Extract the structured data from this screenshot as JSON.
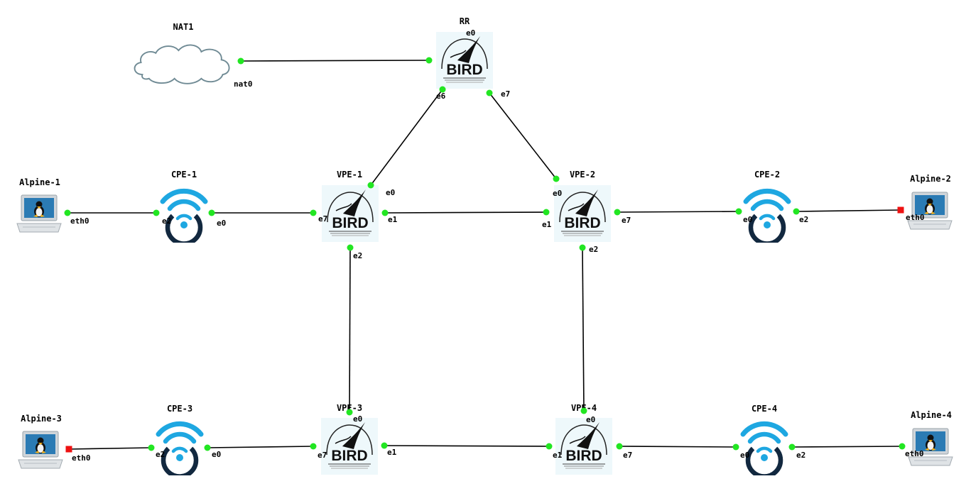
{
  "colors": {
    "port_up": "#22e622",
    "port_down": "#ee1111",
    "wifi_arc": "#1ea7e1",
    "wifi_ring": "#12283f",
    "cloud": "#6f8a94"
  },
  "nodes": {
    "nat1": {
      "label": "NAT1",
      "type": "cloud-icon"
    },
    "rr": {
      "label": "RR",
      "type": "bird-router-icon"
    },
    "vpe1": {
      "label": "VPE-1",
      "type": "bird-router-icon"
    },
    "vpe2": {
      "label": "VPE-2",
      "type": "bird-router-icon"
    },
    "vpe3": {
      "label": "VPE-3",
      "type": "bird-router-icon"
    },
    "vpe4": {
      "label": "VPE-4",
      "type": "bird-router-icon"
    },
    "cpe1": {
      "label": "CPE-1",
      "type": "wifi-router-icon"
    },
    "cpe2": {
      "label": "CPE-2",
      "type": "wifi-router-icon"
    },
    "cpe3": {
      "label": "CPE-3",
      "type": "wifi-router-icon"
    },
    "cpe4": {
      "label": "CPE-4",
      "type": "wifi-router-icon"
    },
    "alpine1": {
      "label": "Alpine-1",
      "type": "linux-laptop-icon"
    },
    "alpine2": {
      "label": "Alpine-2",
      "type": "linux-laptop-icon"
    },
    "alpine3": {
      "label": "Alpine-3",
      "type": "linux-laptop-icon"
    },
    "alpine4": {
      "label": "Alpine-4",
      "type": "linux-laptop-icon"
    }
  },
  "links": [
    {
      "id": "nat1-rr",
      "a_port": "nat0",
      "a_status": "up",
      "b_port": "e0",
      "b_status": "up"
    },
    {
      "id": "rr-vpe1",
      "a_port": "e6",
      "a_status": "up",
      "b_port": "e0",
      "b_status": "up"
    },
    {
      "id": "rr-vpe2",
      "a_port": "e7",
      "a_status": "up",
      "b_port": "e0",
      "b_status": "up"
    },
    {
      "id": "alpine1-cpe1",
      "a_port": "eth0",
      "a_status": "up",
      "b_port": "e2",
      "b_status": "up"
    },
    {
      "id": "cpe1-vpe1",
      "a_port": "e0",
      "a_status": "up",
      "b_port": "e7",
      "b_status": "up"
    },
    {
      "id": "vpe1-vpe2",
      "a_port": "e1",
      "a_status": "up",
      "b_port": "e1",
      "b_status": "up"
    },
    {
      "id": "vpe2-cpe2",
      "a_port": "e7",
      "a_status": "up",
      "b_port": "e0",
      "b_status": "up"
    },
    {
      "id": "cpe2-alpine2",
      "a_port": "e2",
      "a_status": "up",
      "b_port": "eth0",
      "b_status": "down"
    },
    {
      "id": "vpe1-vpe3",
      "a_port": "e2",
      "a_status": "up",
      "b_port": "e0",
      "b_status": "up"
    },
    {
      "id": "vpe2-vpe4",
      "a_port": "e2",
      "a_status": "up",
      "b_port": "e0",
      "b_status": "up"
    },
    {
      "id": "alpine3-cpe3",
      "a_port": "eth0",
      "a_status": "down",
      "b_port": "e2",
      "b_status": "up"
    },
    {
      "id": "cpe3-vpe3",
      "a_port": "e0",
      "a_status": "up",
      "b_port": "e7",
      "b_status": "up"
    },
    {
      "id": "vpe3-vpe4",
      "a_port": "e1",
      "a_status": "up",
      "b_port": "e1",
      "b_status": "up"
    },
    {
      "id": "vpe4-cpe4",
      "a_port": "e7",
      "a_status": "up",
      "b_port": "e0",
      "b_status": "up"
    },
    {
      "id": "cpe4-alpine4",
      "a_port": "e2",
      "a_status": "up",
      "b_port": "eth0",
      "b_status": "up"
    }
  ]
}
